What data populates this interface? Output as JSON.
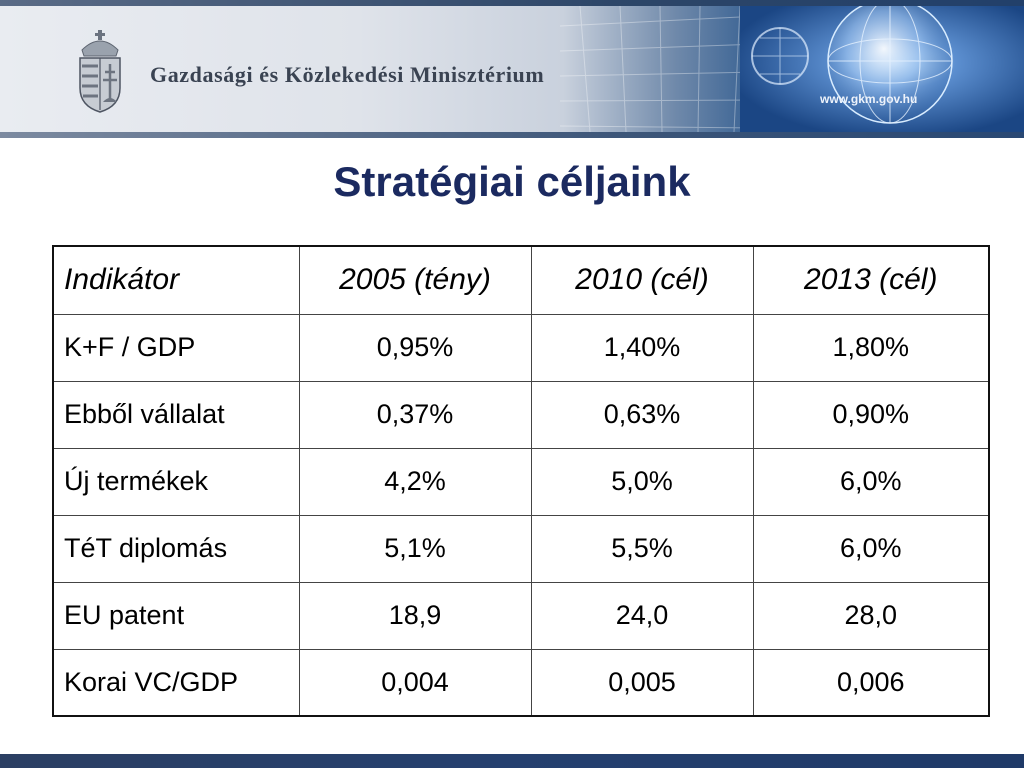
{
  "header": {
    "ministry_name": "Gazdasági és Közlekedési Minisztérium",
    "web_address": "www.gkm.gov.hu",
    "coat_of_arms_icon": "hungarian-coat-of-arms-icon",
    "globe_icon": "globe-icon"
  },
  "title": "Stratégiai céljaink",
  "table": {
    "headers": [
      "Indikátor",
      "2005 (tény)",
      "2010 (cél)",
      "2013 (cél)"
    ],
    "rows": [
      [
        "K+F / GDP",
        "0,95%",
        "1,40%",
        "1,80%"
      ],
      [
        "Ebből vállalat",
        "0,37%",
        "0,63%",
        "0,90%"
      ],
      [
        "Új termékek",
        "4,2%",
        "5,0%",
        "6,0%"
      ],
      [
        "TéT diplomás",
        "5,1%",
        "5,5%",
        "6,0%"
      ],
      [
        "EU patent",
        "18,9",
        "24,0",
        "28,0"
      ],
      [
        "Korai VC/GDP",
        "0,004",
        "0,005",
        "0,006"
      ]
    ]
  },
  "colors": {
    "title": "#1b2a60",
    "banner_dark": "#1d4a86",
    "footer": "#25406f"
  }
}
